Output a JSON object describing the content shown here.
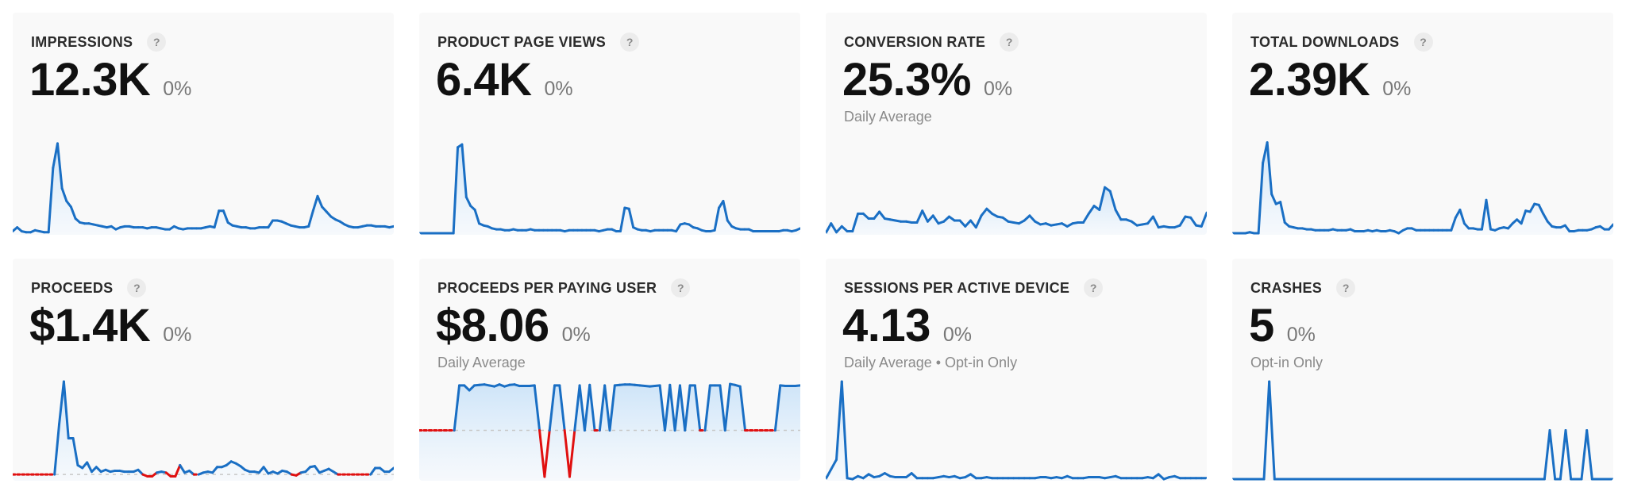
{
  "colors": {
    "line": "#1a6fc4",
    "negative": "#e01010",
    "fill_top": "#c9e2f8",
    "fill_bottom": "#f4f9fe",
    "baseline": "#c8c8c8",
    "card_bg": "#f9f9f9"
  },
  "cards": [
    {
      "title": "IMPRESSIONS",
      "help": "?",
      "value": "12.3K",
      "change": "0%",
      "subtitle": ""
    },
    {
      "title": "PRODUCT PAGE VIEWS",
      "help": "?",
      "value": "6.4K",
      "change": "0%",
      "subtitle": ""
    },
    {
      "title": "CONVERSION RATE",
      "help": "?",
      "value": "25.3%",
      "change": "0%",
      "subtitle": "Daily Average"
    },
    {
      "title": "TOTAL DOWNLOADS",
      "help": "?",
      "value": "2.39K",
      "change": "0%",
      "subtitle": ""
    },
    {
      "title": "PROCEEDS",
      "help": "?",
      "value": "$1.4K",
      "change": "0%",
      "subtitle": ""
    },
    {
      "title": "PROCEEDS PER PAYING USER",
      "help": "?",
      "value": "$8.06",
      "change": "0%",
      "subtitle": "Daily Average"
    },
    {
      "title": "SESSIONS PER ACTIVE DEVICE",
      "help": "?",
      "value": "4.13",
      "change": "0%",
      "subtitle": "Daily Average • Opt-in Only"
    },
    {
      "title": "CRASHES",
      "help": "?",
      "value": "5",
      "change": "0%",
      "subtitle": "Opt-in Only"
    }
  ],
  "chart_data": [
    {
      "type": "area",
      "title": "IMPRESSIONS",
      "ylim": [
        0,
        100
      ],
      "baseline": 0,
      "values": [
        2,
        6,
        2,
        1,
        1,
        3,
        2,
        1,
        1,
        67,
        92,
        46,
        33,
        27,
        15,
        11,
        10,
        10,
        9,
        8,
        7,
        6,
        7,
        4,
        6,
        7,
        7,
        6,
        6,
        6,
        5,
        6,
        6,
        5,
        4,
        4,
        7,
        5,
        4,
        5,
        5,
        5,
        5,
        6,
        7,
        6,
        23,
        23,
        11,
        8,
        7,
        6,
        6,
        5,
        5,
        6,
        6,
        6,
        13,
        13,
        12,
        10,
        8,
        7,
        6,
        6,
        7,
        23,
        38,
        27,
        22,
        17,
        14,
        12,
        9,
        7,
        6,
        6,
        7,
        8,
        8,
        7,
        7,
        7,
        6,
        7
      ]
    },
    {
      "type": "area",
      "title": "PRODUCT PAGE VIEWS",
      "ylim": [
        0,
        100
      ],
      "baseline": 0,
      "values": [
        0,
        0,
        0,
        0,
        0,
        0,
        0,
        0,
        0,
        88,
        91,
        37,
        28,
        24,
        10,
        8,
        7,
        5,
        4,
        4,
        3,
        3,
        4,
        3,
        3,
        3,
        4,
        3,
        3,
        3,
        3,
        3,
        3,
        3,
        2,
        3,
        3,
        3,
        3,
        3,
        3,
        3,
        2,
        3,
        4,
        4,
        2,
        2,
        26,
        25,
        6,
        4,
        3,
        3,
        2,
        3,
        3,
        3,
        3,
        3,
        2,
        9,
        10,
        9,
        6,
        5,
        3,
        2,
        2,
        3,
        26,
        33,
        13,
        7,
        5,
        4,
        4,
        4,
        2,
        2,
        2,
        2,
        2,
        2,
        2,
        3,
        3,
        2,
        3,
        5
      ]
    },
    {
      "type": "area",
      "title": "CONVERSION RATE",
      "ylim": [
        0,
        100
      ],
      "baseline": 0,
      "values": [
        0,
        10,
        1,
        7,
        2,
        2,
        20,
        20,
        15,
        15,
        22,
        15,
        14,
        13,
        12,
        12,
        11,
        11,
        23,
        12,
        18,
        10,
        12,
        17,
        13,
        13,
        7,
        13,
        6,
        18,
        25,
        20,
        17,
        16,
        12,
        11,
        10,
        13,
        18,
        12,
        9,
        10,
        8,
        9,
        10,
        7,
        10,
        11,
        11,
        20,
        28,
        24,
        47,
        43,
        24,
        14,
        14,
        12,
        8,
        9,
        10,
        17,
        6,
        7,
        6,
        6,
        8,
        17,
        16,
        8,
        7,
        21
      ]
    },
    {
      "type": "area",
      "title": "TOTAL DOWNLOADS",
      "ylim": [
        0,
        100
      ],
      "baseline": 0,
      "values": [
        0,
        0,
        0,
        0,
        1,
        0,
        0,
        72,
        93,
        40,
        30,
        32,
        11,
        7,
        6,
        5,
        5,
        4,
        4,
        3,
        3,
        3,
        3,
        4,
        3,
        3,
        3,
        4,
        2,
        2,
        2,
        3,
        2,
        3,
        2,
        2,
        3,
        2,
        0,
        3,
        5,
        5,
        3,
        3,
        3,
        3,
        3,
        3,
        3,
        3,
        3,
        16,
        24,
        10,
        5,
        5,
        4,
        4,
        34,
        4,
        3,
        5,
        6,
        5,
        10,
        14,
        10,
        23,
        22,
        30,
        29,
        20,
        12,
        7,
        6,
        6,
        8,
        2,
        2,
        3,
        3,
        3,
        4,
        6,
        7,
        4,
        4,
        9
      ]
    },
    {
      "type": "area",
      "title": "PROCEEDS",
      "ylim": [
        -5,
        100
      ],
      "baseline": 0,
      "values": [
        0,
        0,
        0,
        0,
        0,
        0,
        0,
        0,
        0,
        0,
        54,
        100,
        39,
        39,
        10,
        7,
        13,
        3,
        8,
        3,
        5,
        3,
        4,
        4,
        3,
        3,
        3,
        5,
        0,
        -2,
        -2,
        2,
        3,
        2,
        -2,
        -2,
        10,
        2,
        4,
        0,
        0,
        2,
        3,
        2,
        8,
        8,
        10,
        14,
        12,
        9,
        5,
        3,
        3,
        2,
        8,
        1,
        3,
        1,
        4,
        3,
        0,
        -1,
        2,
        3,
        8,
        9,
        2,
        4,
        6,
        3,
        0,
        0,
        0,
        0,
        0,
        0,
        0,
        0,
        7,
        7,
        3,
        3,
        7
      ]
    },
    {
      "type": "area",
      "title": "PROCEEDS PER PAYING USER",
      "ylim": [
        -100,
        100
      ],
      "baseline": 0,
      "values": [
        0,
        0,
        0,
        0,
        0,
        0,
        0,
        0,
        92,
        92,
        82,
        92,
        93,
        94,
        92,
        90,
        94,
        90,
        93,
        94,
        91,
        91,
        91,
        92,
        0,
        -95,
        0,
        92,
        92,
        0,
        -95,
        0,
        92,
        0,
        93,
        0,
        0,
        92,
        0,
        92,
        93,
        94,
        94,
        93,
        92,
        91,
        90,
        91,
        92,
        0,
        93,
        0,
        92,
        0,
        92,
        92,
        0,
        0,
        92,
        92,
        92,
        0,
        95,
        93,
        90,
        0,
        0,
        0,
        0,
        0,
        0,
        0,
        92,
        91,
        91,
        91,
        92
      ]
    },
    {
      "type": "area",
      "title": "SESSIONS PER ACTIVE DEVICE",
      "ylim": [
        0,
        100
      ],
      "baseline": 0,
      "values": [
        0,
        10,
        20,
        100,
        1,
        0,
        3,
        1,
        5,
        2,
        3,
        6,
        3,
        2,
        2,
        2,
        6,
        1,
        1,
        1,
        1,
        2,
        3,
        2,
        3,
        1,
        2,
        5,
        1,
        1,
        2,
        1,
        1,
        1,
        1,
        1,
        1,
        1,
        1,
        1,
        2,
        2,
        1,
        2,
        1,
        3,
        1,
        1,
        1,
        2,
        2,
        2,
        1,
        2,
        3,
        1,
        1,
        1,
        1,
        1,
        2,
        1,
        5,
        0,
        2,
        3,
        1,
        1,
        1,
        1,
        1,
        1
      ]
    },
    {
      "type": "line",
      "title": "CRASHES",
      "ylim": [
        0,
        100
      ],
      "baseline": 0,
      "values": [
        0,
        0,
        0,
        0,
        0,
        0,
        0,
        100,
        0,
        0,
        0,
        0,
        0,
        0,
        0,
        0,
        0,
        0,
        0,
        0,
        0,
        0,
        0,
        0,
        0,
        0,
        0,
        0,
        0,
        0,
        0,
        0,
        0,
        0,
        0,
        0,
        0,
        0,
        0,
        0,
        0,
        0,
        0,
        0,
        0,
        0,
        0,
        0,
        0,
        0,
        0,
        0,
        0,
        0,
        0,
        0,
        0,
        0,
        0,
        0,
        50,
        0,
        0,
        50,
        0,
        0,
        0,
        50,
        0,
        0,
        0,
        0,
        0
      ]
    }
  ]
}
